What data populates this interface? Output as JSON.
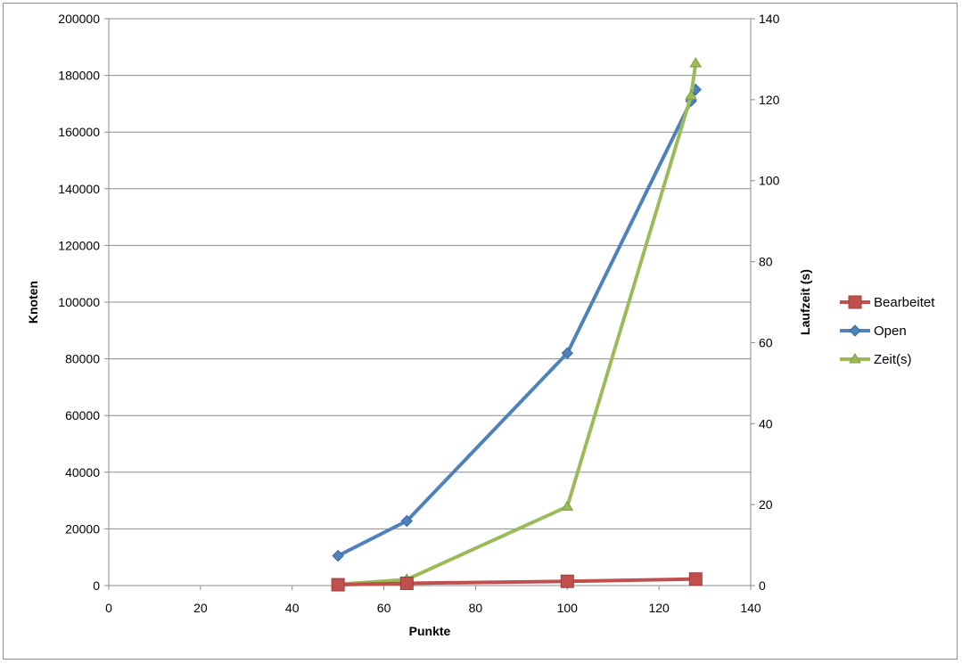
{
  "chart_data": {
    "type": "line",
    "xlabel": "Punkte",
    "ylabel": "Knoten",
    "y2label": "Laufzeit (s)",
    "xlim": [
      0,
      140
    ],
    "ylim": [
      0,
      200000
    ],
    "y2lim": [
      0,
      140
    ],
    "xticks": [
      "0",
      "20",
      "40",
      "60",
      "80",
      "100",
      "120",
      "140"
    ],
    "yticks": [
      "0",
      "20000",
      "40000",
      "60000",
      "80000",
      "100000",
      "120000",
      "140000",
      "160000",
      "180000",
      "200000"
    ],
    "y2ticks": [
      "0",
      "20",
      "40",
      "60",
      "80",
      "100",
      "120",
      "140"
    ],
    "grid": "horizontal",
    "legend_position": "right",
    "series": [
      {
        "name": "Bearbeitet",
        "axis": "left",
        "color": "#c0504d",
        "marker": "square",
        "x": [
          50,
          65,
          100,
          128
        ],
        "y": [
          300,
          800,
          1500,
          2300
        ]
      },
      {
        "name": "Open",
        "axis": "left",
        "color": "#4f81bd",
        "marker": "diamond",
        "x": [
          50,
          65,
          100,
          127,
          128
        ],
        "y": [
          10500,
          22800,
          82000,
          171000,
          175000
        ]
      },
      {
        "name": "Zeit(s)",
        "axis": "right",
        "color": "#9bbb59",
        "marker": "triangle",
        "x": [
          50,
          65,
          100,
          127,
          128
        ],
        "y": [
          0.3,
          1.5,
          19.5,
          121,
          129
        ]
      }
    ]
  }
}
